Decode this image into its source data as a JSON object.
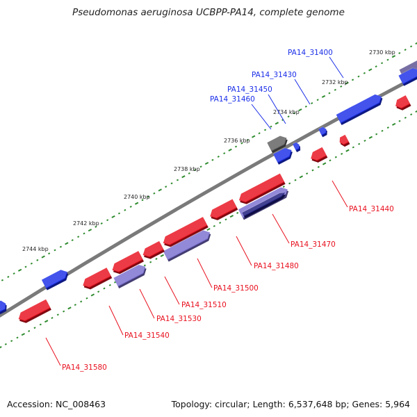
{
  "title": "Pseudomonas aeruginosa UCBPP-PA14, complete genome",
  "footer": {
    "accession": "Accession: NC_008463",
    "summary": "Topology: circular; Length: 6,537,648 bp; Genes: 5,964"
  },
  "colors": {
    "backbone": "#7a7a7a",
    "forward": "#1a2ee8",
    "reverse": "#e8101e",
    "lavender": "#7a6fd0",
    "navy": "#1c1a7a",
    "gray": "#606060",
    "slate": "#5a5090",
    "tick": "#2e8b2e"
  },
  "tick_labels": [
    "2730 kbp",
    "2732 kbp",
    "2734 kbp",
    "2736 kbp",
    "2738 kbp",
    "2740 kbp",
    "2742 kbp",
    "2744 kbp"
  ],
  "gene_labels": {
    "forward": [
      "PA14_31400",
      "PA14_31430",
      "PA14_31450",
      "PA14_31460"
    ],
    "reverse": [
      "PA14_31440",
      "PA14_31470",
      "PA14_31480",
      "PA14_31500",
      "PA14_31510",
      "PA14_31530",
      "PA14_31540",
      "PA14_31580"
    ]
  }
}
